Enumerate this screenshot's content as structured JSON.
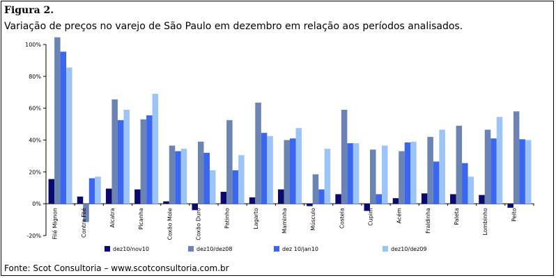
{
  "figure_label": "Figura 2.",
  "subtitle": "Variação de preços no varejo de São Paulo em dezembro em relação aos períodos analisados.",
  "source": "Fonte: Scot Consultoria – www.scotconsultoria.com.br",
  "chart_data": {
    "type": "bar",
    "title": "Variação de preços no varejo de São Paulo em dezembro em relação aos períodos analisados.",
    "xlabel": "",
    "ylabel": "",
    "ylim": [
      -20,
      100
    ],
    "yticks": [
      -20,
      0,
      20,
      40,
      60,
      80,
      100
    ],
    "ytick_labels": [
      "-20%",
      "0%",
      "20%",
      "40%",
      "60%",
      "80%",
      "100%"
    ],
    "grid": false,
    "legend_position": "bottom",
    "categories": [
      "Filé Mignon",
      "Contra Filé",
      "Alcatra",
      "Picanha",
      "Coxão Mole",
      "Coxão Duro",
      "Patinho",
      "Lagarto",
      "Maminha",
      "Músculo",
      "Costela",
      "Cupim",
      "Acém",
      "Fraldinha",
      "Paleta",
      "Lombinho",
      "Peito"
    ],
    "series": [
      {
        "name": "dez10/nov10",
        "color": "#0a0a6e",
        "values": [
          15.5,
          4.5,
          9.5,
          9,
          1.5,
          -4,
          7.5,
          4,
          9,
          -1.5,
          6,
          -4.5,
          3.5,
          6.5,
          6,
          5.5,
          -2.5
        ]
      },
      {
        "name": "dez10/dez08",
        "color": "#6b84b4",
        "values": [
          104.5,
          -11.5,
          65.5,
          53,
          36.5,
          39,
          52.5,
          63.5,
          40,
          18.5,
          59,
          34,
          33,
          42,
          49,
          46.5,
          58
        ]
      },
      {
        "name": "dez 10/jan10",
        "color": "#3a66f0",
        "values": [
          95.5,
          16,
          52.5,
          55.5,
          33,
          32,
          21,
          44.5,
          41,
          9,
          38,
          6,
          38.5,
          26.5,
          25.5,
          41,
          40.5
        ]
      },
      {
        "name": "dez10/dez09",
        "color": "#9cc4f7",
        "values": [
          85.5,
          17,
          59,
          69,
          34.5,
          21,
          30.5,
          42.5,
          47.5,
          34.5,
          38,
          36.5,
          39,
          46.5,
          17,
          54.5,
          40
        ]
      }
    ]
  }
}
